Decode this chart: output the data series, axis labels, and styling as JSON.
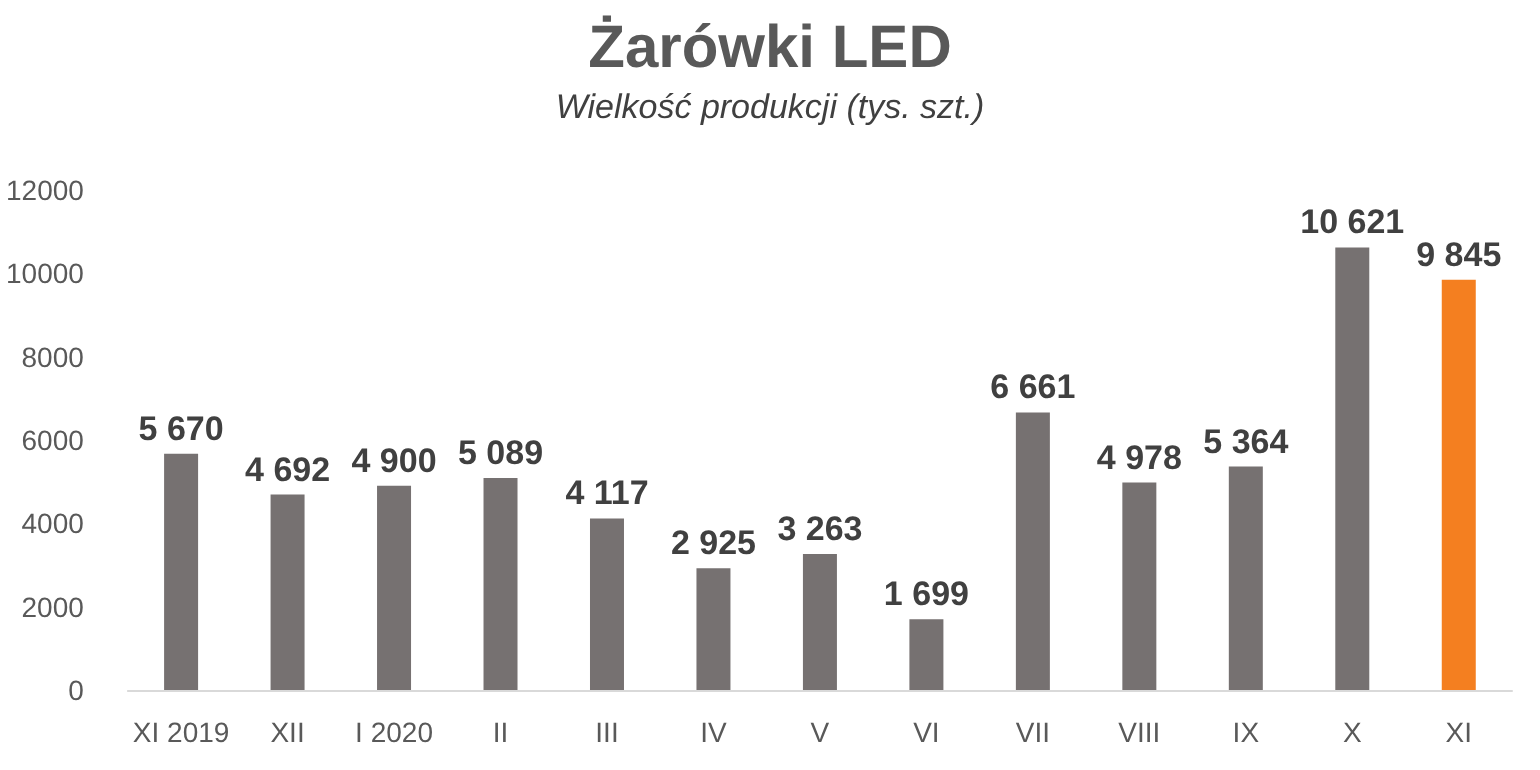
{
  "chart_data": {
    "type": "bar",
    "title": "Żarówki LED",
    "subtitle": "Wielkość produkcji (tys. szt.)",
    "categories": [
      "XI 2019",
      "XII",
      "I 2020",
      "II",
      "III",
      "IV",
      "V",
      "VI",
      "VII",
      "VIII",
      "IX",
      "X",
      "XI"
    ],
    "values": [
      5670,
      4692,
      4900,
      5089,
      4117,
      2925,
      3263,
      1699,
      6661,
      4978,
      5364,
      10621,
      9845
    ],
    "value_labels": [
      "5 670",
      "4 692",
      "4 900",
      "5 089",
      "4 117",
      "2 925",
      "3 263",
      "1 699",
      "6 661",
      "4 978",
      "5 364",
      "10 621",
      "9 845"
    ],
    "colors": [
      "#767171",
      "#767171",
      "#767171",
      "#767171",
      "#767171",
      "#767171",
      "#767171",
      "#767171",
      "#767171",
      "#767171",
      "#767171",
      "#767171",
      "#f47f20"
    ],
    "ylim": [
      0,
      12000
    ],
    "yticks": [
      0,
      2000,
      4000,
      6000,
      8000,
      10000,
      12000
    ],
    "grid": false
  }
}
